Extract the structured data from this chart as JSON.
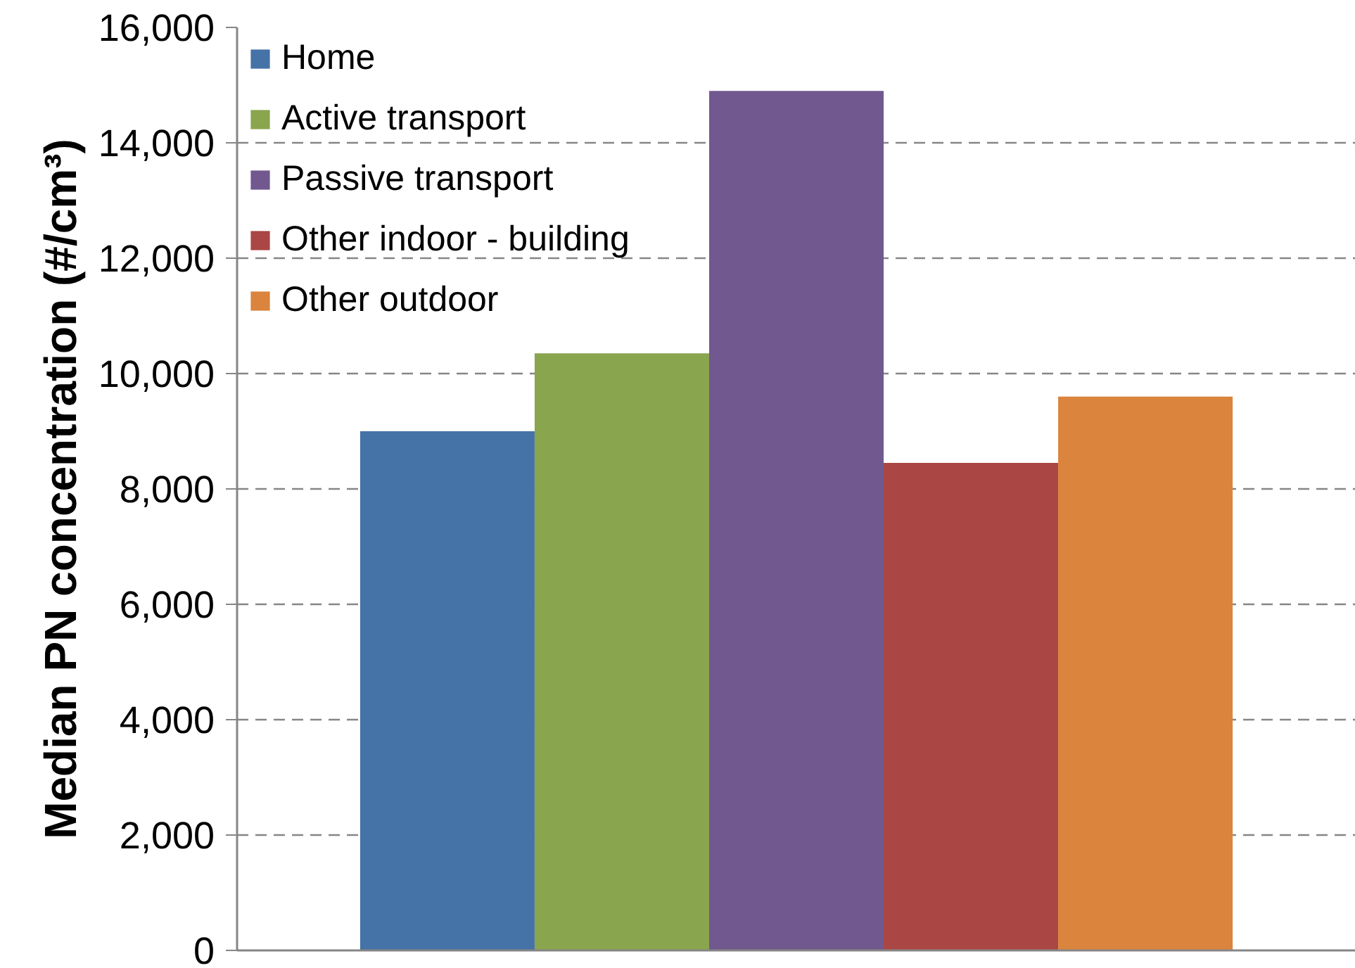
{
  "chart_data": {
    "type": "bar",
    "ylabel": "Median PN concentration (#/cm³)",
    "categories": [
      null
    ],
    "series": [
      {
        "name": "Home",
        "color": "#4572a7",
        "values": [
          9000
        ]
      },
      {
        "name": "Active transport",
        "color": "#89a54e",
        "values": [
          10350
        ]
      },
      {
        "name": "Passive transport",
        "color": "#71588f",
        "values": [
          14900
        ]
      },
      {
        "name": "Other indoor - building",
        "color": "#aa4643",
        "values": [
          8450
        ]
      },
      {
        "name": "Other outdoor",
        "color": "#db843d",
        "values": [
          9600
        ]
      }
    ],
    "ylim": [
      0,
      16000
    ],
    "yticks": [
      0,
      {
        "value": 2000,
        "label": "2,000"
      },
      {
        "value": 4000,
        "label": "4,000"
      },
      {
        "value": 6000,
        "label": "6,000"
      },
      {
        "value": 8000,
        "label": "8,000"
      },
      {
        "value": 10000,
        "label": "10,000"
      },
      {
        "value": 12000,
        "label": "12,000"
      },
      {
        "value": 14000,
        "label": "14,000"
      },
      {
        "value": 16000,
        "label": "16,000"
      }
    ],
    "grid": "y",
    "legend": "top left"
  }
}
